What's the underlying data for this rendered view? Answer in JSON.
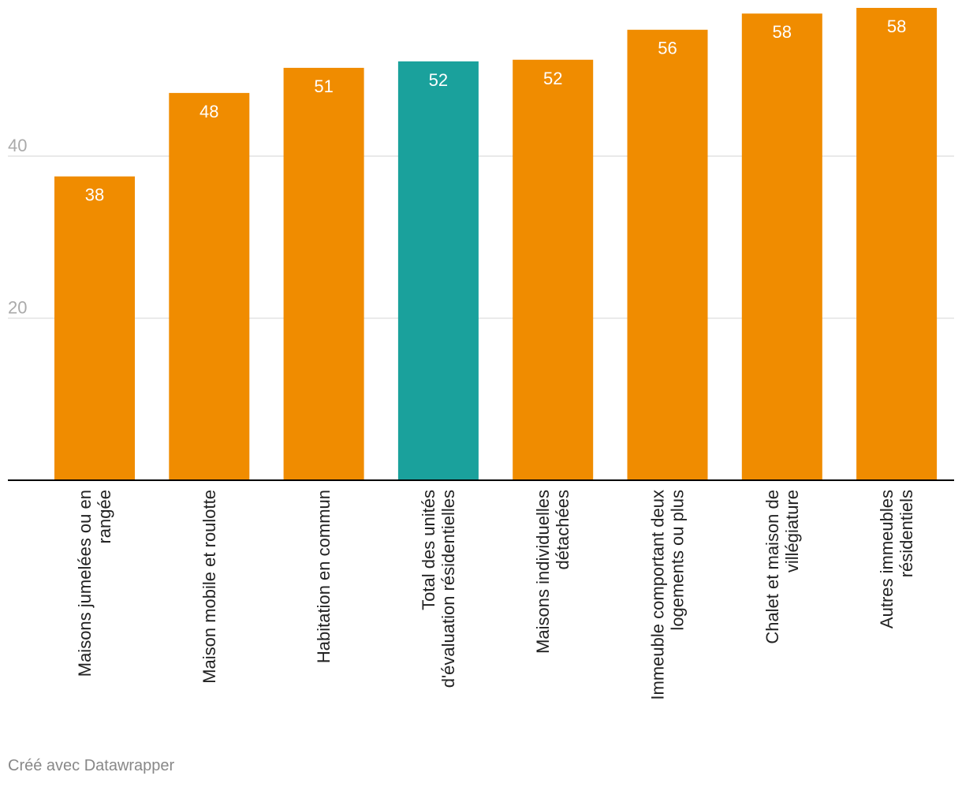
{
  "chart_data": {
    "type": "bar",
    "categories": [
      [
        "Maisons jumelées ou en",
        "rangée"
      ],
      [
        "Maison mobile et roulotte"
      ],
      [
        "Habitation en commun"
      ],
      [
        "Total des unités",
        "d'évaluation résidentielles"
      ],
      [
        "Maisons individuelles",
        "détachées"
      ],
      [
        "Immeuble comportant deux",
        "logements ou plus"
      ],
      [
        "Chalet et maison de",
        "villégiature"
      ],
      [
        "Autres immeubles",
        "résidentiels"
      ]
    ],
    "values": [
      37.5,
      47.8,
      50.9,
      51.7,
      51.9,
      55.6,
      57.6,
      58.3
    ],
    "data_labels": [
      "38",
      "48",
      "51",
      "52",
      "52",
      "56",
      "58",
      "58"
    ],
    "highlight_index": 3,
    "ylim": [
      0,
      58.3
    ],
    "yticks": [
      20,
      40
    ],
    "grid": true,
    "colors": {
      "bar": "#f08c00",
      "highlight": "#1aa19c",
      "grid": "#e2e2e2",
      "baseline": "#000000",
      "tick_label": "#aaaaaa",
      "category_label": "#222222",
      "data_label": "#ffffff"
    }
  },
  "footer": "Créé avec Datawrapper"
}
